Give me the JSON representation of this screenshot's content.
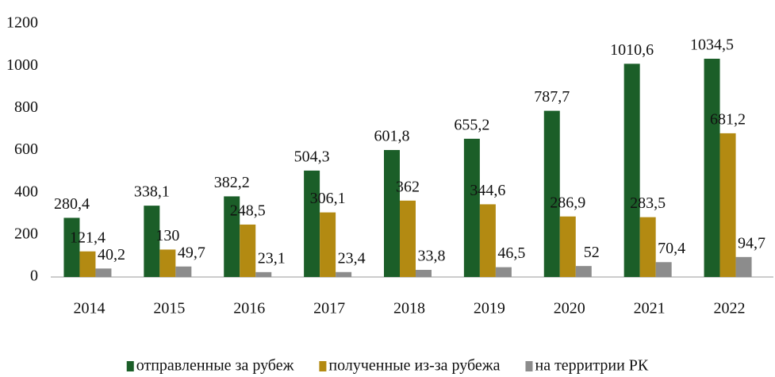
{
  "chart_data": {
    "type": "bar",
    "categories": [
      "2014",
      "2015",
      "2016",
      "2017",
      "2018",
      "2019",
      "2020",
      "2021",
      "2022"
    ],
    "series": [
      {
        "name": "отправленные за рубеж",
        "color": "#1b5e28",
        "values": [
          280.4,
          338.1,
          382.2,
          504.3,
          601.8,
          655.2,
          787.7,
          1010.6,
          1034.5
        ],
        "value_labels": [
          "280,4",
          "338,1",
          "382,2",
          "504,3",
          "601,8",
          "655,2",
          "787,7",
          "1010,6",
          "1034,5"
        ]
      },
      {
        "name": "полученные из-за рубежа",
        "color": "#b38a12",
        "values": [
          121.4,
          130,
          248.5,
          306.1,
          362,
          344.6,
          286.9,
          283.5,
          681.2
        ],
        "value_labels": [
          "121,4",
          "130",
          "248,5",
          "306,1",
          "362",
          "344,6",
          "286,9",
          "283,5",
          "681,2"
        ]
      },
      {
        "name": "на территрии РК",
        "color": "#8c8c8c",
        "values": [
          40.2,
          49.7,
          23.1,
          23.4,
          33.8,
          46.5,
          52,
          70.4,
          94.7
        ],
        "value_labels": [
          "40,2",
          "49,7",
          "23,1",
          "23,4",
          "33,8",
          "46,5",
          "52",
          "70,4",
          "94,7"
        ]
      }
    ],
    "ylim": [
      0,
      1200
    ],
    "yticks": [
      0,
      200,
      400,
      600,
      800,
      1000,
      1200
    ],
    "grid": false,
    "legend": "bottom"
  }
}
